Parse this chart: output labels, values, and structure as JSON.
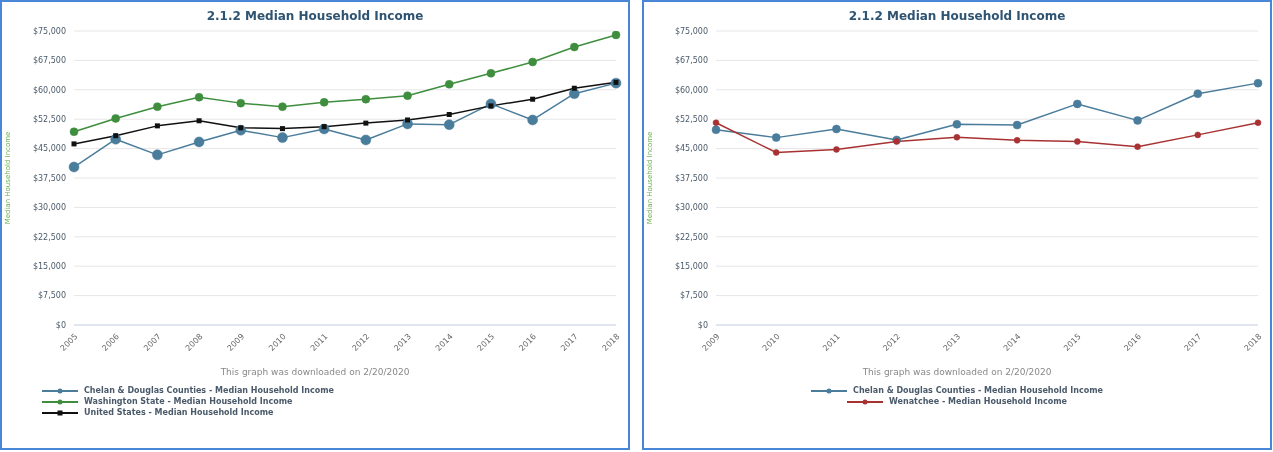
{
  "chart_data": [
    {
      "type": "line",
      "title": "2.1.2 Median Household Income",
      "ylabel": "Median Household Income",
      "categories": [
        "2005",
        "2006",
        "2007",
        "2008",
        "2009",
        "2010",
        "2011",
        "2012",
        "2013",
        "2014",
        "2015",
        "2016",
        "2017",
        "2018"
      ],
      "series": [
        {
          "name": "Chelan & Douglas Counties - Median Household Income",
          "color": "#4a7c9b",
          "marker": "circle",
          "values": [
            40300,
            47400,
            43400,
            46700,
            49700,
            47800,
            50000,
            47200,
            51300,
            51100,
            56400,
            52300,
            59000,
            61700
          ]
        },
        {
          "name": "Washington State - Median Household Income",
          "color": "#3e8e3e",
          "marker": "circle",
          "values": [
            49300,
            52700,
            55700,
            58100,
            56600,
            55700,
            56800,
            57600,
            58500,
            61400,
            64200,
            67100,
            70900,
            74000
          ]
        },
        {
          "name": "United States - Median Household Income",
          "color": "#111111",
          "marker": "square",
          "values": [
            46200,
            48300,
            50800,
            52100,
            50300,
            50100,
            50600,
            51500,
            52300,
            53700,
            55900,
            57600,
            60400,
            61900
          ]
        }
      ],
      "ylim": [
        0,
        75000
      ],
      "yticks": [
        {
          "value": 0,
          "label": "$0"
        },
        {
          "value": 7500,
          "label": "$7,500"
        },
        {
          "value": 15000,
          "label": "$15,000"
        },
        {
          "value": 22500,
          "label": "$22,500"
        },
        {
          "value": 30000,
          "label": "$30,000"
        },
        {
          "value": 37500,
          "label": "$37,500"
        },
        {
          "value": 45000,
          "label": "$45,000"
        },
        {
          "value": 52500,
          "label": "$52,500"
        },
        {
          "value": 60000,
          "label": "$60,000"
        },
        {
          "value": 67500,
          "label": "$67,500"
        },
        {
          "value": 75000,
          "label": "$75,000"
        }
      ],
      "grid": "y",
      "legend": "bottom left",
      "annotations": [
        "This graph was downloaded on 2/20/2020"
      ]
    },
    {
      "type": "line",
      "title": "2.1.2 Median Household Income",
      "ylabel": "Median Household Income",
      "categories": [
        "2009",
        "2010",
        "2011",
        "2012",
        "2013",
        "2014",
        "2015",
        "2016",
        "2017",
        "2018"
      ],
      "series": [
        {
          "name": "Chelan & Douglas Counties - Median Household Income",
          "color": "#4a7c9b",
          "marker": "circle",
          "values": [
            49800,
            47800,
            50000,
            47200,
            51200,
            51000,
            56400,
            52200,
            59000,
            61700
          ]
        },
        {
          "name": "Wenatchee - Median Household Income",
          "color": "#a83232",
          "marker": "circle",
          "values": [
            51600,
            44000,
            44800,
            46800,
            47900,
            47100,
            46800,
            45500,
            48500,
            51600
          ]
        }
      ],
      "ylim": [
        0,
        75000
      ],
      "yticks": [
        {
          "value": 0,
          "label": "$0"
        },
        {
          "value": 7500,
          "label": "$7,500"
        },
        {
          "value": 15000,
          "label": "$15,000"
        },
        {
          "value": 22500,
          "label": "$22,500"
        },
        {
          "value": 30000,
          "label": "$30,000"
        },
        {
          "value": 37500,
          "label": "$37,500"
        },
        {
          "value": 45000,
          "label": "$45,000"
        },
        {
          "value": 52500,
          "label": "$52,500"
        },
        {
          "value": 60000,
          "label": "$60,000"
        },
        {
          "value": 67500,
          "label": "$67,500"
        },
        {
          "value": 75000,
          "label": "$75,000"
        }
      ],
      "grid": "y",
      "legend": "bottom",
      "annotations": [
        "This graph was downloaded on 2/20/2020"
      ]
    }
  ]
}
